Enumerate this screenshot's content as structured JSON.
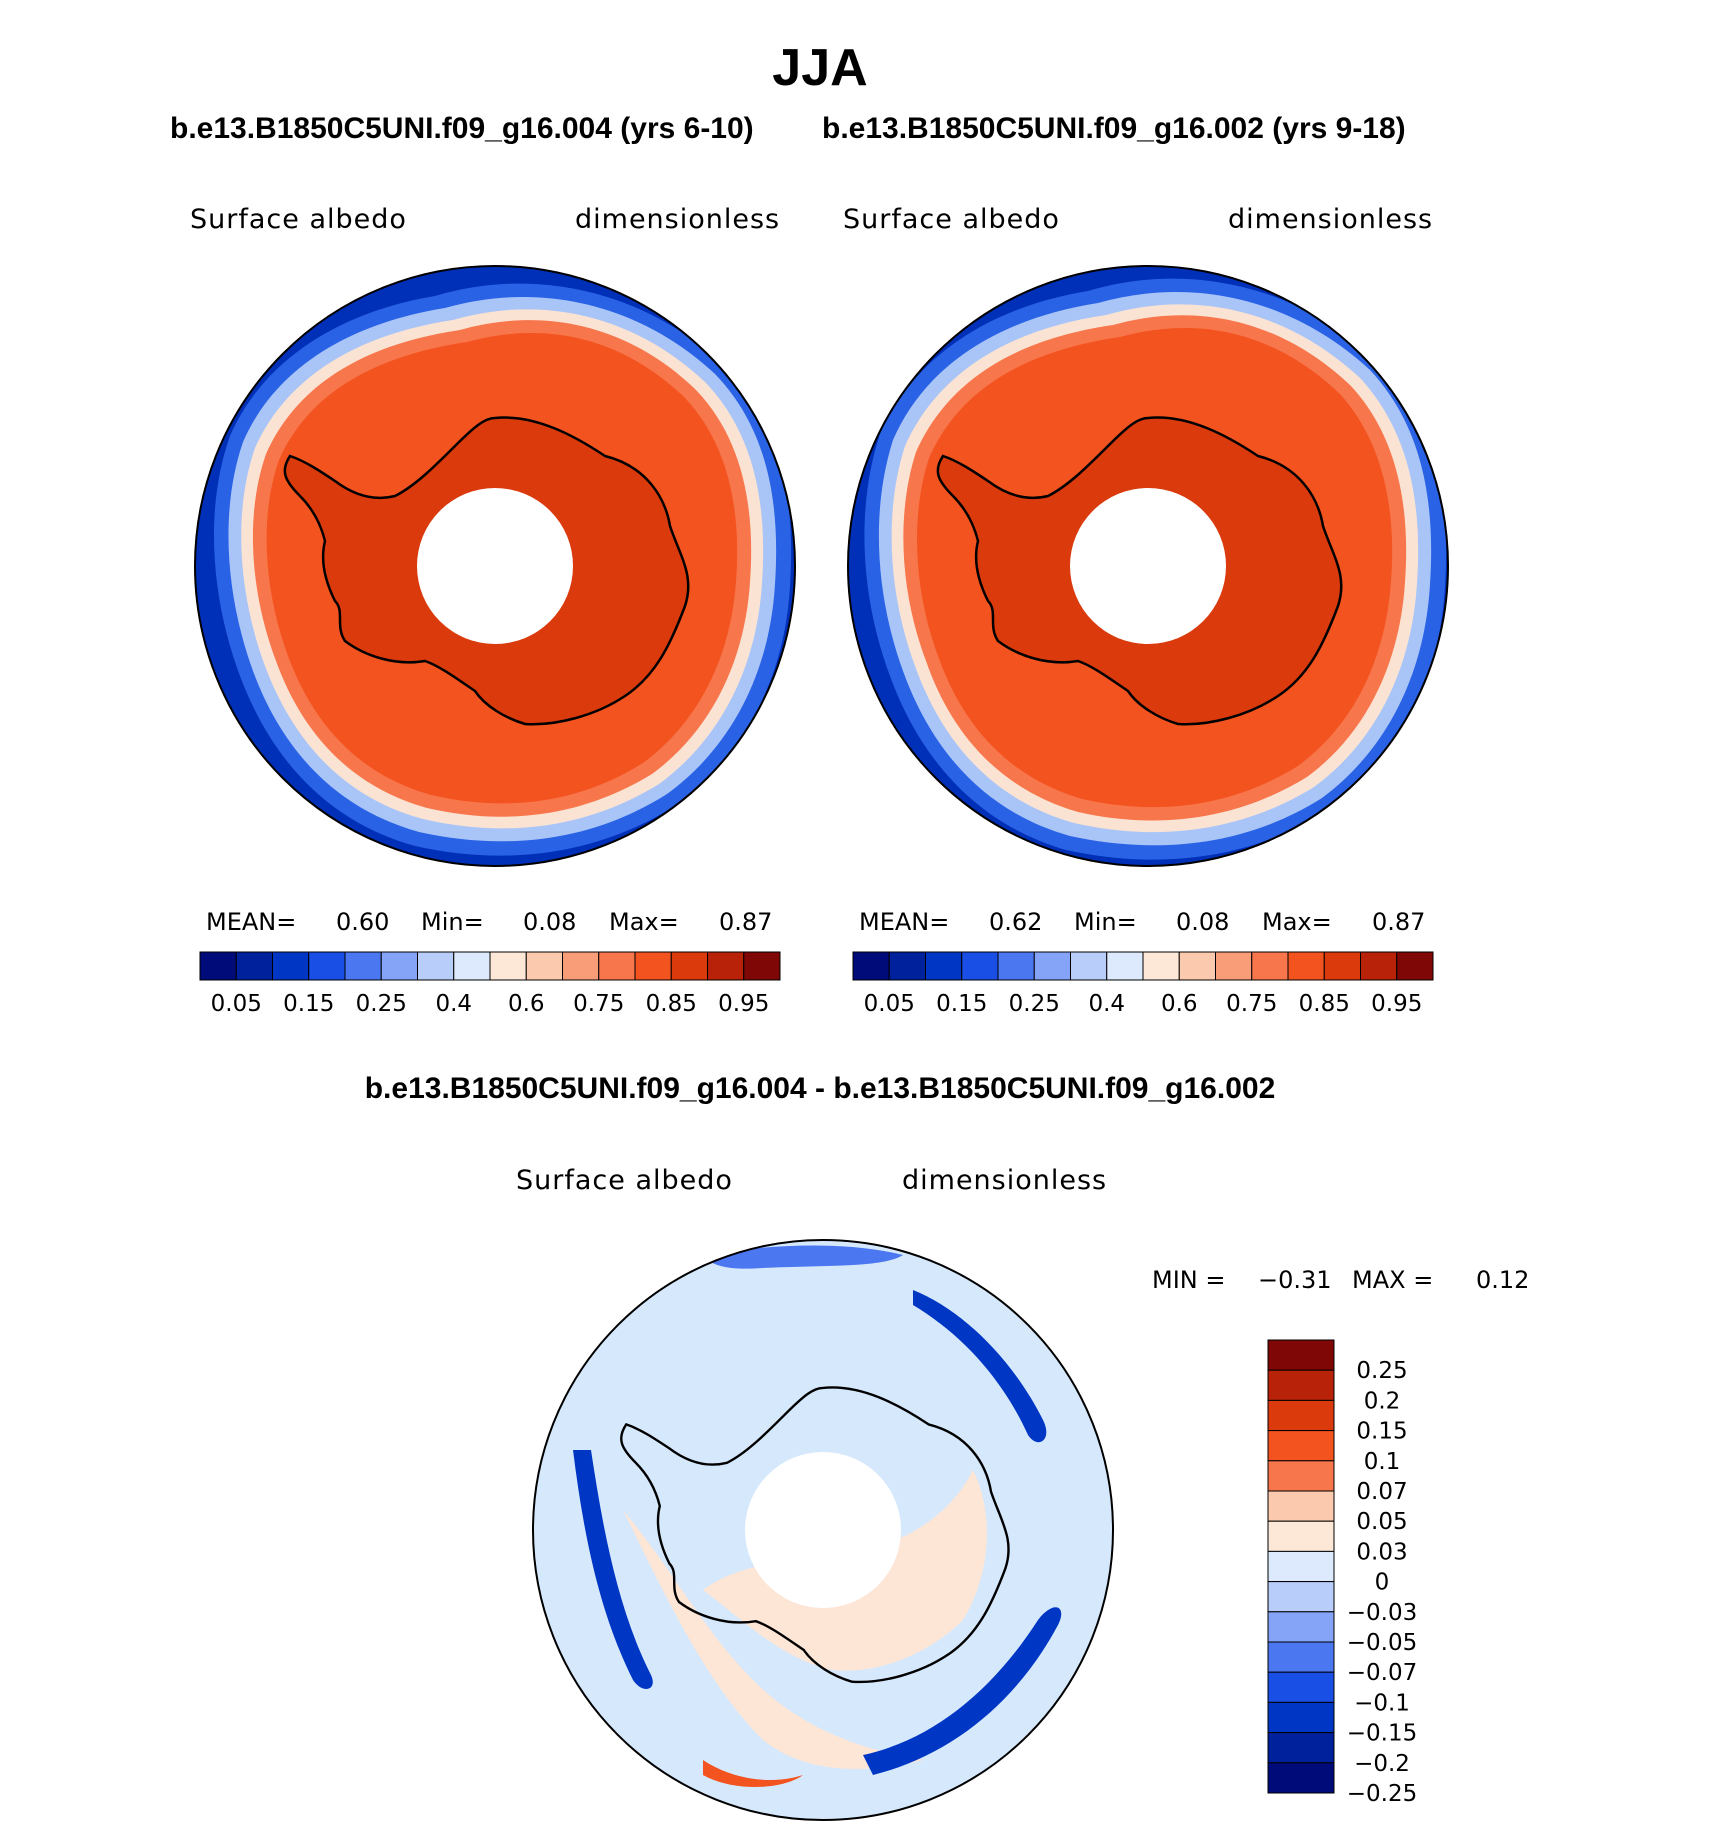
{
  "figure": {
    "title": "JJA",
    "top_subtitle_left": "b.e13.B1850C5UNI.f09_g16.004 (yrs 6-10)",
    "top_subtitle_right": "b.e13.B1850C5UNI.f09_g16.002 (yrs 9-18)",
    "diff_title": "b.e13.B1850C5UNI.f09_g16.004 - b.e13.B1850C5UNI.f09_g16.002"
  },
  "panels": [
    {
      "variable": "Surface albedo",
      "units": "dimensionless",
      "mean_label": "MEAN=",
      "mean": "0.60",
      "min_label": "Min=",
      "min": "0.08",
      "max_label": "Max=",
      "max": "0.87"
    },
    {
      "variable": "Surface albedo",
      "units": "dimensionless",
      "mean_label": "MEAN=",
      "mean": "0.62",
      "min_label": "Min=",
      "min": "0.08",
      "max_label": "Max=",
      "max": "0.87"
    }
  ],
  "diff_panel": {
    "variable": "Surface albedo",
    "units": "dimensionless",
    "min_label": "MIN =",
    "min": "−0.31",
    "max_label": "MAX =",
    "max": "0.12"
  },
  "colorbar_main": {
    "colors": [
      "#000b7a",
      "#00219c",
      "#0036c4",
      "#1a4fe6",
      "#4b77f0",
      "#85a4f7",
      "#b8cdf9",
      "#dde9fc",
      "#fde8d8",
      "#fbc9ad",
      "#f99d79",
      "#f8764c",
      "#f3531e",
      "#da3a0c",
      "#b82208",
      "#7f0705"
    ],
    "labels": [
      "0.05",
      "0.15",
      "0.25",
      "0.4",
      "0.6",
      "0.75",
      "0.85",
      "0.95"
    ]
  },
  "colorbar_diff": {
    "colors_top_to_bottom": [
      "#7f0705",
      "#b82208",
      "#da3a0c",
      "#f3531e",
      "#f8764c",
      "#fbc9ad",
      "#fde8d8",
      "#dde9fc",
      "#b8cdf9",
      "#85a4f7",
      "#4b77f0",
      "#1a4fe6",
      "#0036c4",
      "#00219c",
      "#000b7a"
    ],
    "labels": [
      "0.25",
      "0.2",
      "0.15",
      "0.1",
      "0.07",
      "0.05",
      "0.03",
      "0",
      "−0.03",
      "−0.05",
      "−0.07",
      "−0.1",
      "−0.15",
      "−0.2",
      "−0.25"
    ]
  },
  "map_colors": {
    "ocean_deep": "#0030b8",
    "ocean_mid": "#2a62e6",
    "ocean_light": "#a9c5f7",
    "edge_pale": "#fbe3d3",
    "ice_outer": "#f8764c",
    "ice_main": "#f3531e",
    "ice_inner": "#da3a0c",
    "diff_base": "#d6e8fc",
    "diff_warm": "#fde6d6",
    "diff_strong_blue": "#0036c4",
    "diff_mid_blue": "#4b77f0",
    "diff_red": "#f3531e"
  }
}
